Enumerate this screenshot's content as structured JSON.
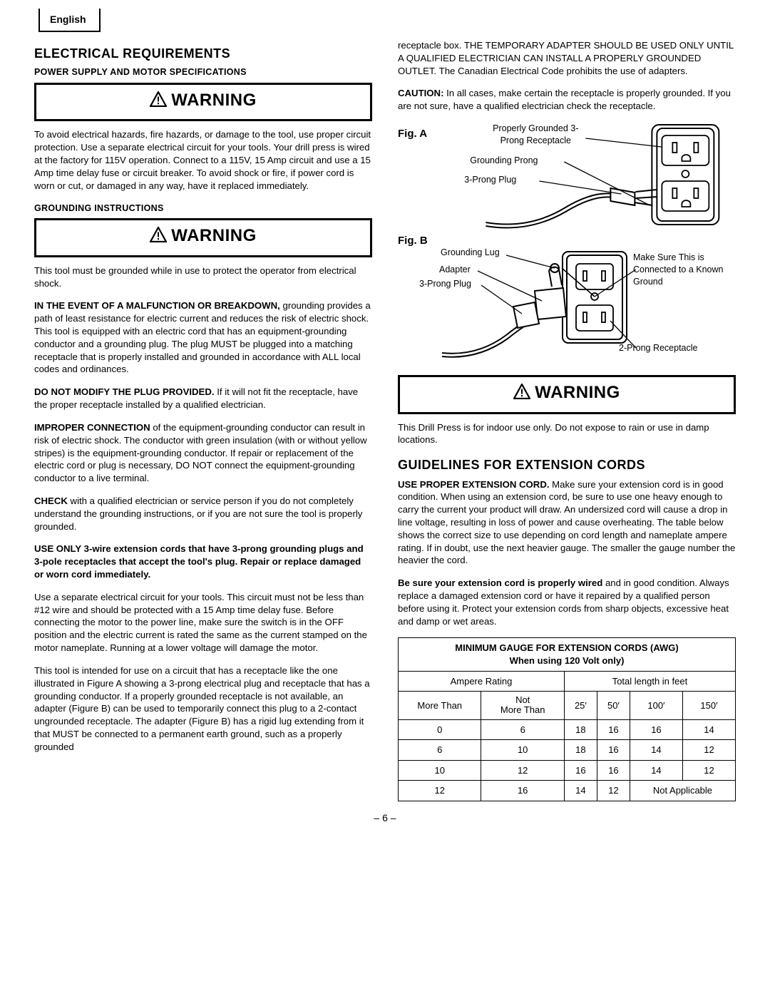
{
  "tab": "English",
  "page_number": "– 6 –",
  "warning_label": "WARNING",
  "left": {
    "h_elec": "ELECTRICAL REQUIREMENTS",
    "h_power": "POWER SUPPLY AND MOTOR SPECIFICATIONS",
    "p1": "To avoid electrical hazards, fire hazards, or damage to the tool, use proper circuit protection. Use a separate electrical circuit for your tools. Your drill press is wired at the factory for 115V operation. Connect to a 115V, 15 Amp circuit and use a 15 Amp time delay fuse or circuit breaker. To avoid shock or fire, if power cord is worn or cut, or damaged in any way, have it replaced immediately.",
    "h_ground": "GROUNDING INSTRUCTIONS",
    "p2": "This tool must be grounded while in use to protect the operator from electrical shock.",
    "h_malf": "IN THE EVENT OF A MALFUNCTION OR BREAKDOWN,",
    "p3": "grounding provides a path of least resistance for electric current and reduces the risk of electric shock. This tool is equipped with an electric cord that has an equipment-grounding conductor and a grounding plug. The plug MUST be plugged into a matching receptacle that is properly installed and grounded in accordance with ALL local codes and ordinances.",
    "p4a": "DO NOT MODIFY THE PLUG PROVIDED.",
    "p4b": " If it will not fit the receptacle, have the proper receptacle installed by a qualified electrician.",
    "p5a": "IMPROPER CONNECTION",
    "p5b": " of the equipment-grounding conductor can result in risk of electric shock. The conductor with green insulation (with or without yellow stripes) is the equipment-grounding conductor. If repair or replacement of the electric cord or plug is necessary, DO NOT connect the equipment-grounding conductor to a live terminal.",
    "p6a": "CHECK",
    "p6b": " with a qualified electrician or service person if you do not completely understand the grounding instructions, or if you are not sure the tool is properly grounded.",
    "p7": "USE ONLY 3-wire extension cords that have 3-prong grounding plugs and 3-pole receptacles that accept the tool's plug. Repair or replace damaged or worn cord immediately.",
    "p8": "Use a separate electrical circuit for your tools. This circuit must not be less than #12 wire and should be protected with a 15 Amp time delay fuse. Before connecting the motor to the power line, make sure the switch is in the OFF position and the electric current is rated the same as the current stamped on the motor nameplate. Running at a lower voltage will damage the motor.",
    "p9": "This tool is intended for use on a circuit that has a receptacle like the one illustrated in Figure A showing a 3-prong electrical plug and receptacle that has a grounding conductor. If a properly grounded receptacle is not available, an adapter (Figure B) can be used to temporarily connect this plug to a 2-contact ungrounded receptacle. The adapter (Figure B) has a rigid lug extending from it that MUST be connected to a permanent earth ground, such as a properly grounded"
  },
  "right": {
    "p1": "receptacle box. THE TEMPORARY ADAPTER SHOULD BE USED ONLY UNTIL A QUALIFIED ELECTRICIAN CAN INSTALL A PROPERLY GROUNDED OUTLET. The Canadian Electrical Code prohibits the use of adapters.",
    "p2a": "CAUTION:",
    "p2b": " In all cases, make certain the receptacle is properly grounded. If you are not sure, have a qualified electrician check the receptacle.",
    "figA_label": "Fig. A",
    "figA": {
      "c1": "Properly Grounded 3-Prong Receptacle",
      "c2": "Grounding Prong",
      "c3": "3-Prong Plug"
    },
    "figB_label": "Fig. B",
    "figB": {
      "c1": "Grounding Lug",
      "c2": "Adapter",
      "c3": "3-Prong Plug",
      "c4": "Make Sure This is Connected to a Known Ground",
      "c5": "2-Prong Receptacle"
    },
    "p3": "This Drill Press is for indoor use only. Do not expose to rain or use in damp locations.",
    "h_ext": "GUIDELINES FOR EXTENSION CORDS",
    "p4a": "USE PROPER EXTENSION CORD.",
    "p4b": " Make sure your extension cord is in good condition. When using an extension cord, be sure to use one heavy enough to carry the current your product will draw. An undersized cord will cause a drop in line voltage, resulting in loss of power and cause overheating. The table below shows the correct size to use depending on cord length and nameplate ampere rating. If in doubt, use the next heavier gauge. The smaller the gauge number the heavier the cord.",
    "p5a": "Be sure your extension cord is properly wired",
    "p5b": " and in good condition. Always replace a damaged extension cord or have it repaired by a qualified person before using it. Protect your extension cords from sharp objects, excessive heat and damp or wet areas.",
    "table": {
      "hdr1": "MINIMUM GAUGE FOR EXTENSION CORDS (AWG)",
      "hdr2": "When using 120 Volt only",
      "amp_label": "Ampere Rating",
      "len_label": "Total length in feet",
      "more_than": "More Than",
      "not_more_than": "Not More Than",
      "lens": [
        "25′",
        "50′",
        "100′",
        "150′"
      ],
      "rows": [
        [
          "0",
          "6",
          "18",
          "16",
          "16",
          "14"
        ],
        [
          "6",
          "10",
          "18",
          "16",
          "14",
          "12"
        ],
        [
          "10",
          "12",
          "16",
          "16",
          "14",
          "12"
        ]
      ],
      "lastrow": {
        "a": "12",
        "b": "16",
        "c": "14",
        "d": "12",
        "na": "Not Applicable"
      }
    }
  }
}
